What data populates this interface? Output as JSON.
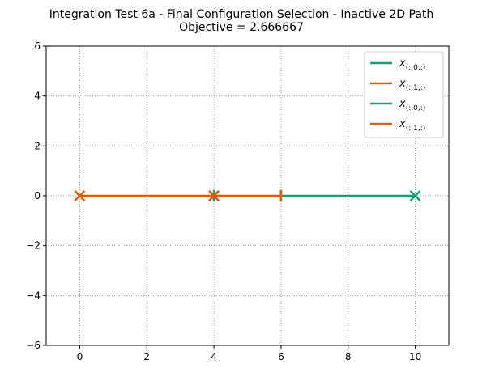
{
  "chart_data": {
    "type": "line",
    "title": "Integration Test 6a - Final Configuration Selection - Inactive 2D Path",
    "subtitle": "Objective = 2.666667",
    "xlabel": "",
    "ylabel": "",
    "xlim": [
      -1,
      11
    ],
    "ylim": [
      -6,
      6
    ],
    "xticks": [
      0,
      2,
      4,
      6,
      8,
      10
    ],
    "yticks": [
      -6,
      -4,
      -2,
      0,
      2,
      4,
      6
    ],
    "xtick_labels": [
      "0",
      "2",
      "4",
      "6",
      "8",
      "10"
    ],
    "ytick_labels": [
      "−6",
      "−4",
      "−2",
      "0",
      "2",
      "4",
      "6"
    ],
    "grid": true,
    "grid_style": "dotted",
    "legend_position": "top-right",
    "series": [
      {
        "name": "x",
        "subscript": "(:,0,:)",
        "color": "#1b9e77",
        "x": [
          6,
          10
        ],
        "y": [
          0,
          0
        ],
        "start_marker": "vline",
        "end_marker": "x"
      },
      {
        "name": "x",
        "subscript": "(:,1,:)",
        "color": "#d95f02",
        "x": [
          4,
          0
        ],
        "y": [
          0,
          0
        ],
        "start_marker": "vline",
        "end_marker": "x"
      },
      {
        "name": "x",
        "subscript": "(:,0,:)",
        "color": "#1b9e77",
        "x": [
          4,
          4
        ],
        "y": [
          0,
          0
        ],
        "start_marker": "vline",
        "end_marker": "x"
      },
      {
        "name": "x",
        "subscript": "(:,1,:)",
        "color": "#d95f02",
        "x": [
          6,
          4
        ],
        "y": [
          0,
          0
        ],
        "start_marker": "vline",
        "end_marker": "x"
      }
    ]
  }
}
